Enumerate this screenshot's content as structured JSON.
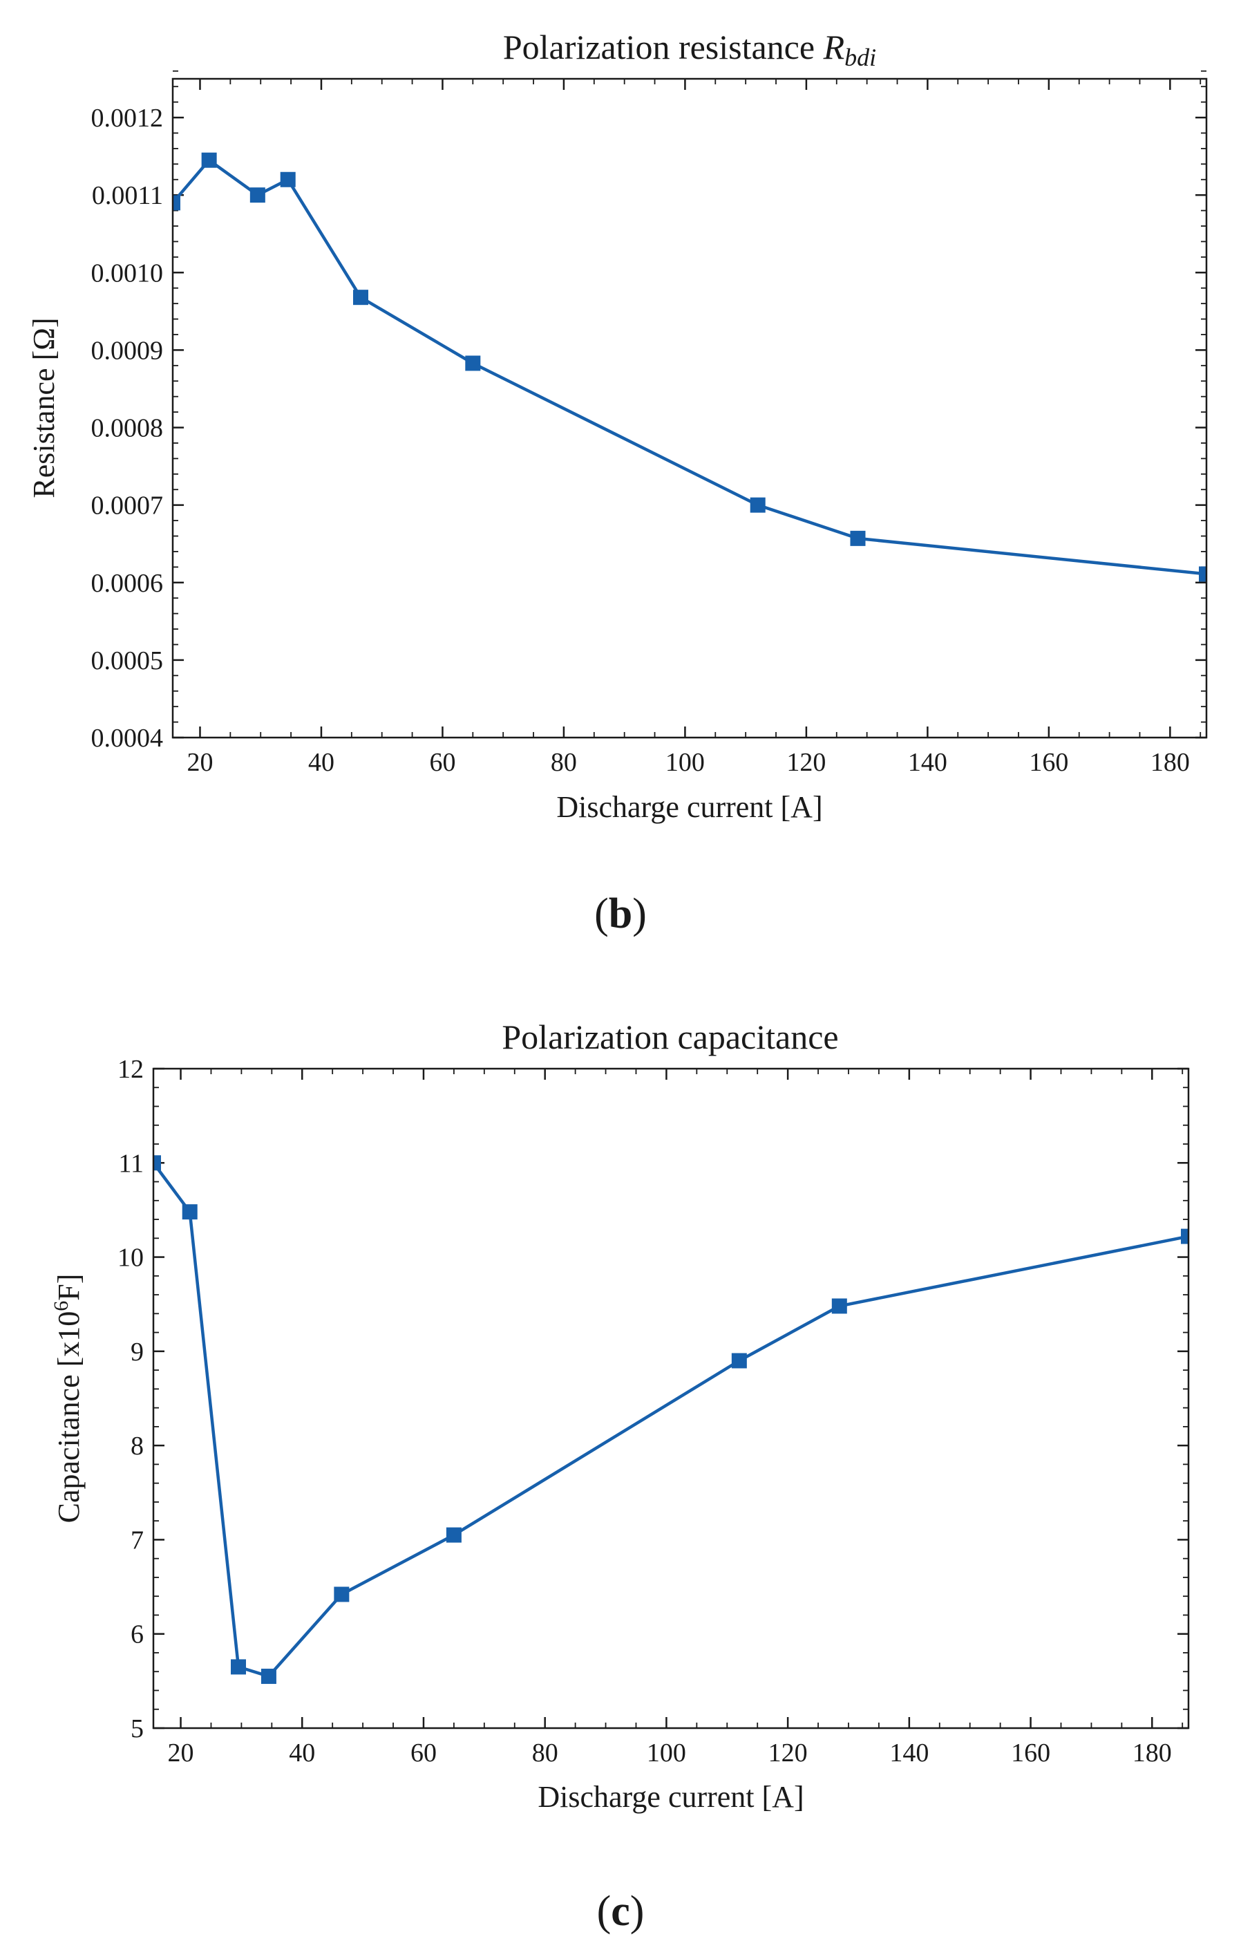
{
  "chart_data": [
    {
      "type": "line",
      "panel": "b",
      "title": "Polarization resistance ",
      "title_math": "R",
      "title_math_sub": "bdi",
      "xlabel": "Discharge current [A]",
      "ylabel": "Resistance [Ω]",
      "xlim": [
        15.5,
        186
      ],
      "ylim": [
        0.0004,
        0.00125
      ],
      "xticks": [
        20,
        40,
        60,
        80,
        100,
        120,
        140,
        160,
        180
      ],
      "xtick_labels": [
        "20",
        "40",
        "60",
        "80",
        "100",
        "120",
        "140",
        "160",
        "180"
      ],
      "yticks": [
        0.0004,
        0.0005,
        0.0006,
        0.0007,
        0.0008,
        0.0009,
        0.001,
        0.0011,
        0.0012
      ],
      "ytick_labels": [
        "0.0004",
        "0.0005",
        "0.0006",
        "0.0007",
        "0.0008",
        "0.0009",
        "0.0010",
        "0.0011",
        "0.0012"
      ],
      "x_minor_step": 5,
      "y_minor_step": 2e-05,
      "grid": false,
      "series": [
        {
          "name": "R_bdi",
          "marker": "square",
          "color": "#1760ac",
          "x": [
            15.5,
            21.5,
            29.5,
            34.5,
            46.5,
            65,
            112,
            128.5,
            186
          ],
          "y": [
            0.00109,
            0.001145,
            0.0011,
            0.00112,
            0.000968,
            0.000883,
            0.0007,
            0.000657,
            0.000611
          ]
        }
      ]
    },
    {
      "type": "line",
      "panel": "c",
      "title": "Polarization capacitance",
      "xlabel": "Discharge current [A]",
      "ylabel_prefix": "Capacitance [x10",
      "ylabel_sup": "6",
      "ylabel_suffix": "F]",
      "xlim": [
        15.5,
        186
      ],
      "ylim": [
        5,
        12
      ],
      "xticks": [
        20,
        40,
        60,
        80,
        100,
        120,
        140,
        160,
        180
      ],
      "xtick_labels": [
        "20",
        "40",
        "60",
        "80",
        "100",
        "120",
        "140",
        "160",
        "180"
      ],
      "yticks": [
        5,
        6,
        7,
        8,
        9,
        10,
        11,
        12
      ],
      "ytick_labels": [
        "5",
        "6",
        "7",
        "8",
        "9",
        "10",
        "11",
        "12"
      ],
      "x_minor_step": 5,
      "y_minor_step": 0.2,
      "grid": false,
      "series": [
        {
          "name": "Polarization capacitance",
          "marker": "square",
          "color": "#1760ac",
          "x": [
            15.5,
            21.5,
            29.5,
            34.5,
            46.5,
            65,
            112,
            128.5,
            186
          ],
          "y": [
            11.0,
            10.48,
            5.65,
            5.55,
            6.42,
            7.05,
            8.9,
            9.48,
            10.22
          ]
        }
      ]
    }
  ],
  "panel_labels": {
    "b": {
      "open": "(",
      "letter": "b",
      "close": ")"
    },
    "c": {
      "open": "(",
      "letter": "c",
      "close": ")"
    }
  }
}
